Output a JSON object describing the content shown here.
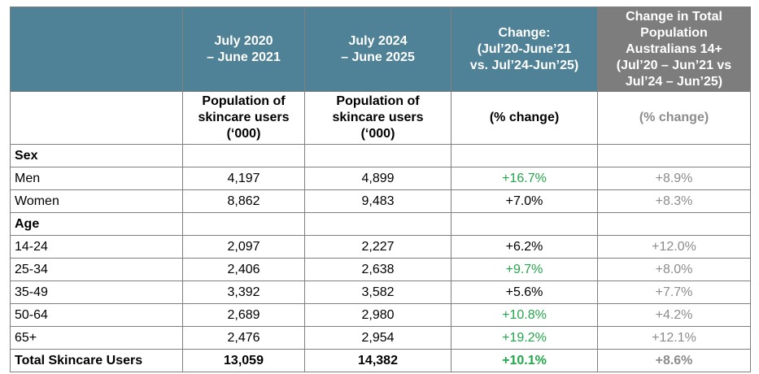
{
  "chart_data": {
    "type": "table",
    "columns": [
      "",
      "July 2020\n– June 2021",
      "July 2024\n– June 2025",
      "Change:\n(Jul’20-June’21\nvs. Jul’24-Jun’25)",
      "Change in Total\nPopulation\nAustralians 14+\n(Jul’20 – Jun’21 vs\nJul’24 – Jun’25)"
    ],
    "subheaders": [
      "",
      "Population of\nskincare users\n(‘000)",
      "Population of\nskincare users\n(‘000)",
      "(% change)",
      "(% change)"
    ],
    "sections": [
      {
        "label": "Sex",
        "rows": [
          {
            "label": "Men",
            "v2021": "4,197",
            "v2025": "4,899",
            "change": "+16.7%",
            "total_change": "+8.9%"
          },
          {
            "label": "Women",
            "v2021": "8,862",
            "v2025": "9,483",
            "change": "+7.0%",
            "total_change": "+8.3%"
          }
        ]
      },
      {
        "label": "Age",
        "rows": [
          {
            "label": "14-24",
            "v2021": "2,097",
            "v2025": "2,227",
            "change": "+6.2%",
            "total_change": "+12.0%"
          },
          {
            "label": "25-34",
            "v2021": "2,406",
            "v2025": "2,638",
            "change": "+9.7%",
            "total_change": "+8.0%"
          },
          {
            "label": "35-49",
            "v2021": "3,392",
            "v2025": "3,582",
            "change": "+5.6%",
            "total_change": "+7.7%"
          },
          {
            "label": "50-64",
            "v2021": "2,689",
            "v2025": "2,980",
            "change": "+10.8%",
            "total_change": "+4.2%"
          },
          {
            "label": "65+",
            "v2021": "2,476",
            "v2025": "2,954",
            "change": "+19.2%",
            "total_change": "+12.1%"
          }
        ]
      }
    ],
    "total": {
      "label": "Total Skincare Users",
      "v2021": "13,059",
      "v2025": "14,382",
      "change": "+10.1%",
      "total_change": "+8.6%"
    }
  },
  "colors": {
    "header_blue": "#4f8296",
    "header_gray": "#7d7d7d",
    "highlight_green": "#22a64a",
    "muted_gray": "#8c8c8c"
  }
}
